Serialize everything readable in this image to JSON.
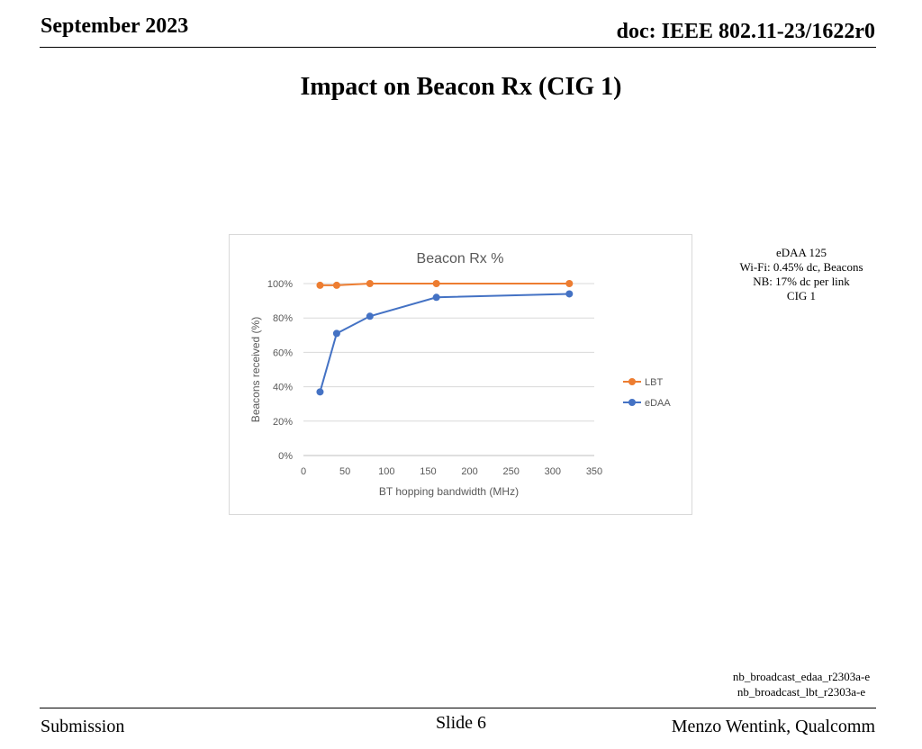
{
  "header": {
    "date": "September 2023",
    "doc": "doc: IEEE 802.11-23/1622r0"
  },
  "slide": {
    "title": "Impact on Beacon Rx (CIG 1)"
  },
  "notes": [
    "eDAA 125",
    "Wi-Fi: 0.45% dc, Beacons",
    "NB: 17% dc per link",
    "CIG 1"
  ],
  "sources": [
    "nb_broadcast_edaa_r2303a-e",
    "nb_broadcast_lbt_r2303a-e"
  ],
  "footer": {
    "left": "Submission",
    "center": "Slide 6",
    "right": "Menzo Wentink, Qualcomm"
  },
  "chart_data": {
    "type": "line",
    "title": "Beacon Rx %",
    "xlabel": "BT hopping bandwidth (MHz)",
    "ylabel": "Beacons received (%)",
    "xlim": [
      0,
      350
    ],
    "ylim": [
      0,
      100
    ],
    "x_ticks": [
      0,
      50,
      100,
      150,
      200,
      250,
      300,
      350
    ],
    "y_ticks": [
      0,
      20,
      40,
      60,
      80,
      100
    ],
    "y_tick_suffix": "%",
    "grid": "horizontal",
    "legend_position": "right",
    "series": [
      {
        "name": "LBT",
        "color": "#ED7D31",
        "x": [
          20,
          40,
          80,
          160,
          320
        ],
        "y": [
          99,
          99,
          100,
          100,
          100
        ]
      },
      {
        "name": "eDAA",
        "color": "#4472C4",
        "x": [
          20,
          40,
          80,
          160,
          320
        ],
        "y": [
          37,
          71,
          81,
          92,
          94
        ]
      }
    ]
  }
}
